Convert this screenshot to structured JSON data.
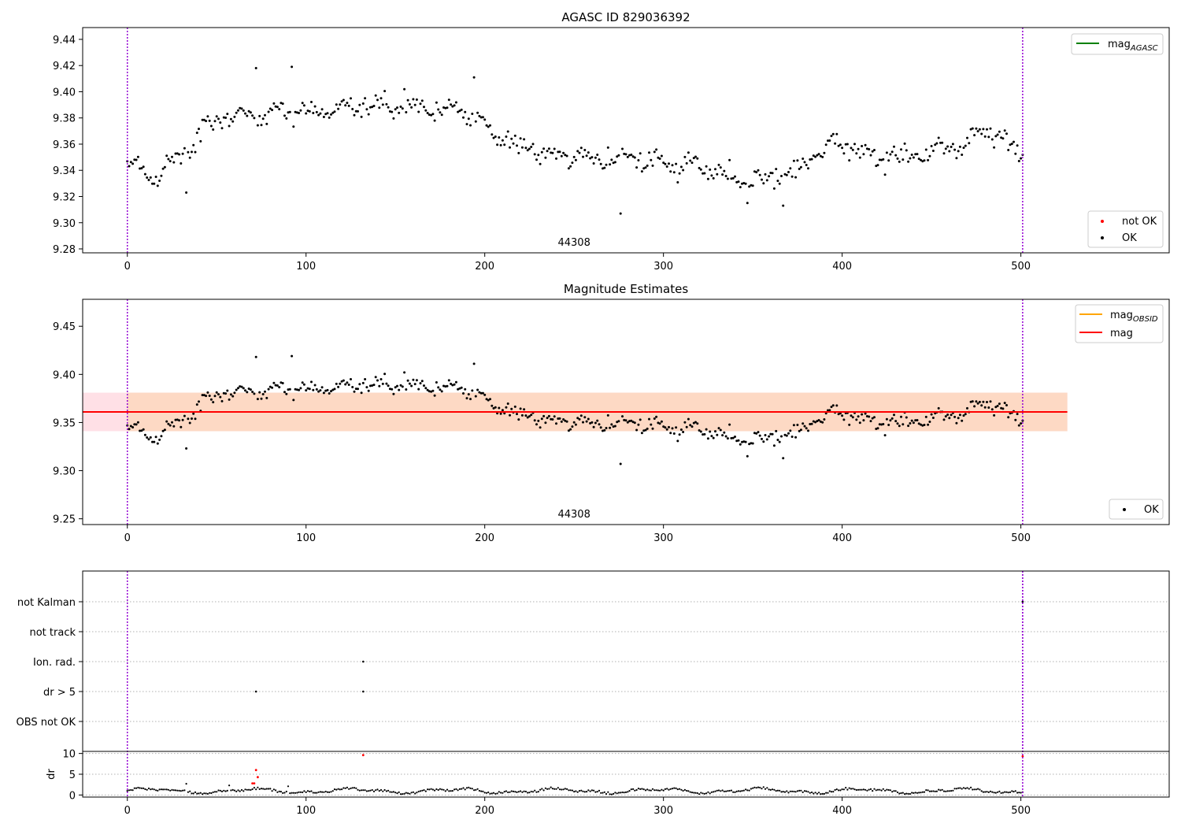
{
  "chart_data": [
    {
      "type": "scatter",
      "title": "AGASC ID 829036392",
      "xlim": [
        -25,
        583
      ],
      "ylim": [
        9.277,
        9.449
      ],
      "xticks": [
        0,
        100,
        200,
        300,
        400,
        500
      ],
      "yticks": [
        9.28,
        9.3,
        9.32,
        9.34,
        9.36,
        9.38,
        9.4,
        9.42,
        9.44
      ],
      "ytick_labels": [
        "9.28",
        "9.30",
        "9.32",
        "9.34",
        "9.36",
        "9.38",
        "9.40",
        "9.42",
        "9.44"
      ],
      "vlines": [
        0,
        501
      ],
      "obsid_label": "44308",
      "obsid_label_x": 250,
      "legend_upper": {
        "label": "mag",
        "sub": "AGASC",
        "color": "#008000"
      },
      "legend_lower": [
        {
          "label": "not OK",
          "color": "#ff0000"
        },
        {
          "label": "OK",
          "color": "#000000"
        }
      ],
      "points": "ok_magnitudes"
    },
    {
      "type": "scatter",
      "title": "Magnitude Estimates",
      "xlim": [
        -25,
        583
      ],
      "ylim": [
        9.244,
        9.478
      ],
      "xticks": [
        0,
        100,
        200,
        300,
        400,
        500
      ],
      "yticks": [
        9.25,
        9.3,
        9.35,
        9.4,
        9.45
      ],
      "ytick_labels": [
        "9.25",
        "9.30",
        "9.35",
        "9.40",
        "9.45"
      ],
      "vlines": [
        0,
        501
      ],
      "obsid_label": "44308",
      "obsid_label_x": 250,
      "mean_mag": 9.361,
      "band_outer": {
        "x": [
          -25,
          526
        ],
        "y": [
          9.341,
          9.381
        ],
        "color": "#ffe0e6"
      },
      "band_inner": {
        "x": [
          0,
          526
        ],
        "y": [
          9.341,
          9.381
        ],
        "color": "#fdd9c4"
      },
      "legend_upper": [
        {
          "label": "mag",
          "sub": "OBSID",
          "color": "#ffa500"
        },
        {
          "label": "mag",
          "sub": "",
          "color": "#ff0000"
        }
      ],
      "legend_lower": [
        {
          "label": "OK",
          "color": "#000000"
        }
      ],
      "points": "ok_magnitudes"
    },
    {
      "type": "scatter",
      "title": "",
      "xlim": [
        -25,
        583
      ],
      "categories": [
        "not Kalman",
        "not track",
        "Ion. rad.",
        "dr > 5",
        "OBS not OK"
      ],
      "vlines": [
        0,
        501
      ],
      "flags": {
        "not Kalman": [
          501
        ],
        "not track": [],
        "Ion. rad.": [
          132
        ],
        "dr > 5": [
          72,
          132
        ],
        "OBS not OK": []
      }
    },
    {
      "type": "scatter",
      "title": "",
      "xlim": [
        -25,
        583
      ],
      "ylim": [
        -0.5,
        10.5
      ],
      "xticks": [
        0,
        100,
        200,
        300,
        400,
        500
      ],
      "yticks": [
        0,
        5,
        10
      ],
      "ytick_labels": [
        "0",
        "5",
        "10"
      ],
      "ylabel": "dr",
      "vlines": [
        0,
        501
      ],
      "dr_red": [
        [
          70,
          2.8
        ],
        [
          71,
          2.8
        ],
        [
          72,
          6.0
        ],
        [
          73,
          4.3
        ],
        [
          132,
          9.6
        ],
        [
          501,
          9.3
        ]
      ]
    }
  ],
  "series_params": {
    "n": 502,
    "ok_color": "#000000",
    "notok_color": "#ff0000",
    "outliers": [
      [
        33,
        9.323
      ],
      [
        72,
        9.418
      ],
      [
        92,
        9.419
      ],
      [
        155,
        9.402
      ],
      [
        194,
        9.411
      ],
      [
        276,
        9.307
      ],
      [
        367,
        9.313
      ],
      [
        347,
        9.315
      ]
    ]
  }
}
